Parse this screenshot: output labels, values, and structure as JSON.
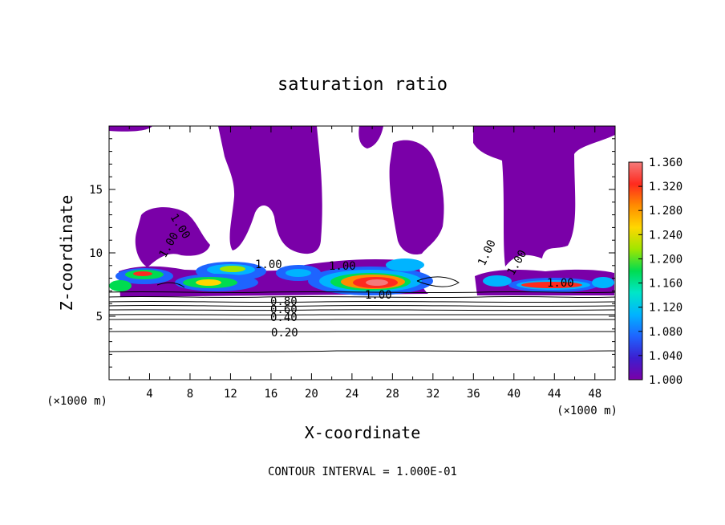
{
  "chart_data": {
    "type": "heatmap",
    "title": "saturation ratio",
    "xlabel": "X-coordinate",
    "ylabel": "Z-coordinate",
    "x_unit": "(×1000 m)",
    "z_unit": "(×1000 m)",
    "xlim": [
      0,
      50
    ],
    "ylim": [
      0,
      20
    ],
    "x_ticks": [
      "4",
      "8",
      "12",
      "16",
      "20",
      "24",
      "28",
      "32",
      "36",
      "40",
      "44",
      "48"
    ],
    "y_ticks": [
      "5",
      "10",
      "15"
    ],
    "footer": "CONTOUR INTERVAL = 1.000E-01",
    "colorbar": {
      "ticks": [
        "1.360",
        "1.320",
        "1.280",
        "1.240",
        "1.200",
        "1.160",
        "1.120",
        "1.080",
        "1.040",
        "1.000"
      ],
      "min": 1.0,
      "max": 1.36,
      "colors": [
        "#7a00a8",
        "#3c1fd0",
        "#1e64ff",
        "#00b4ff",
        "#00e6c8",
        "#00dc50",
        "#a0e600",
        "#ffd700",
        "#ff8c00",
        "#ff2a1e",
        "#f47a7a"
      ]
    },
    "contour_labels": [
      "1.00",
      "1.00",
      "1.00",
      "1.00",
      "1.00",
      "1.00",
      "1.00",
      "1.00",
      "0.80",
      "0.60",
      "0.40",
      "0.20"
    ]
  }
}
